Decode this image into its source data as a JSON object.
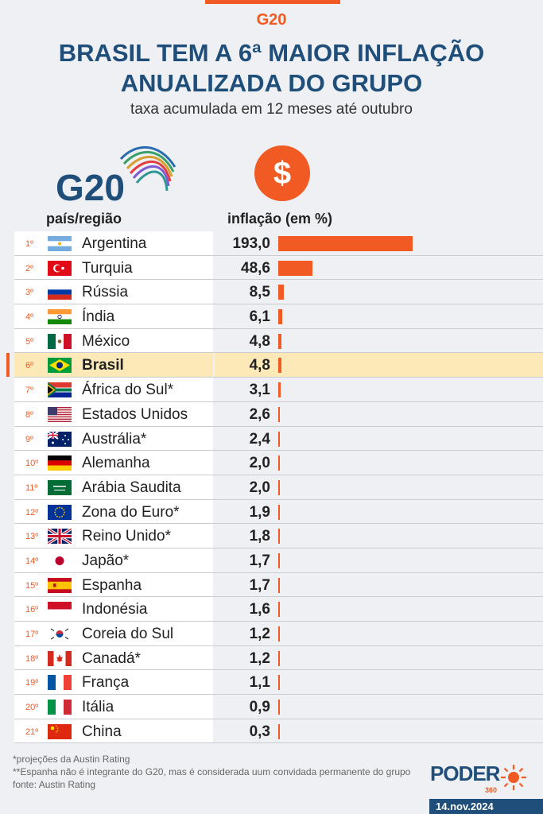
{
  "kicker": "G20",
  "title_line1": "BRASIL TEM A 6ª MAIOR INFLAÇÃO",
  "title_line2": "ANUALIZADA DO GRUPO",
  "subtitle": "taxa acumulada em 12 meses até outubro",
  "logo_text": "G20",
  "currency_symbol": "$",
  "col_country": "país/região",
  "col_value": "inflação (em %)",
  "colors": {
    "accent": "#f15a22",
    "navy": "#1e4e79",
    "highlight": "#fde9b8"
  },
  "chart_data": {
    "type": "bar",
    "orientation": "horizontal",
    "categories": [
      "Argentina",
      "Turquia",
      "Rússia",
      "Índia",
      "México",
      "Brasil",
      "África do Sul*",
      "Estados Unidos",
      "Austrália*",
      "Alemanha",
      "Arábia Saudita",
      "Zona do Euro*",
      "Reino Unido*",
      "Japão*",
      "Espanha",
      "Indonésia",
      "Coreia do Sul",
      "Canadá*",
      "França",
      "Itália",
      "China"
    ],
    "values": [
      193.0,
      48.6,
      8.5,
      6.1,
      4.8,
      4.8,
      3.1,
      2.6,
      2.4,
      2.0,
      2.0,
      1.9,
      1.8,
      1.7,
      1.7,
      1.6,
      1.2,
      1.2,
      1.1,
      0.9,
      0.3
    ],
    "labels": [
      "193,0",
      "48,6",
      "8,5",
      "6,1",
      "4,8",
      "4,8",
      "3,1",
      "2,6",
      "2,4",
      "2,0",
      "2,0",
      "1,9",
      "1,8",
      "1,7",
      "1,7",
      "1,6",
      "1,2",
      "1,2",
      "1,1",
      "0,9",
      "0,3"
    ],
    "ranks": [
      "1º",
      "2º",
      "3º",
      "4º",
      "5º",
      "6º",
      "7º",
      "8º",
      "9º",
      "10º",
      "11º",
      "12º",
      "13º",
      "14º",
      "15º",
      "16º",
      "17º",
      "18º",
      "19º",
      "20º",
      "21º"
    ],
    "flags": [
      "argentina-flag",
      "turkey-flag",
      "russia-flag",
      "india-flag",
      "mexico-flag",
      "brazil-flag",
      "south-africa-flag",
      "usa-flag",
      "australia-flag",
      "germany-flag",
      "saudi-arabia-flag",
      "eu-flag",
      "uk-flag",
      "japan-flag",
      "spain-flag",
      "indonesia-flag",
      "south-korea-flag",
      "canada-flag",
      "france-flag",
      "italy-flag",
      "china-flag"
    ],
    "highlight_index": 5,
    "xlim": [
      0,
      193.0
    ]
  },
  "notes": {
    "note1": "*projeções da Austin Rating",
    "note2": "**Espanha não é integrante do G20, mas é considerada uum convidada permanente do grupo",
    "source": "fonte: Austin Rating"
  },
  "brand": {
    "name": "PODER",
    "sub": "360"
  },
  "date": "14.nov.2024"
}
